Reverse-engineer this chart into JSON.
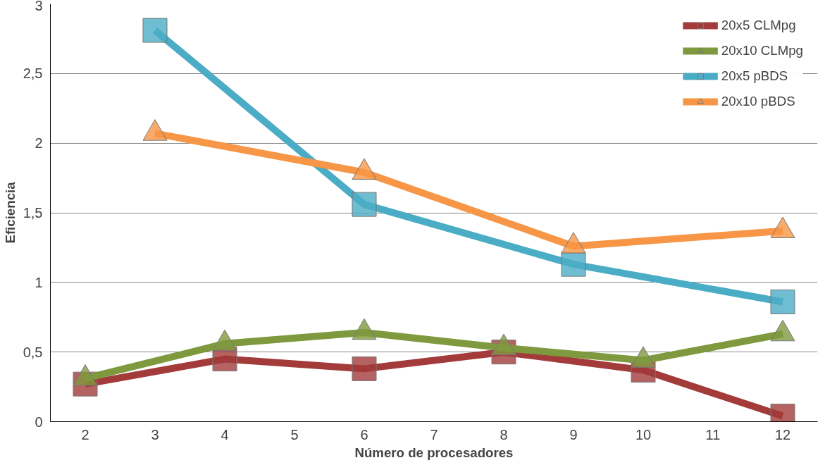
{
  "chart_data": {
    "type": "line",
    "xlabel": "Número de procesadores",
    "ylabel": "Eficiencia",
    "categories": [
      "2",
      "3",
      "4",
      "5",
      "6",
      "7",
      "8",
      "9",
      "10",
      "11",
      "12"
    ],
    "ylim": [
      0,
      3
    ],
    "yticks": [
      0,
      {
        "value": 0.5,
        "label": "0,5"
      },
      1,
      {
        "value": 1.5,
        "label": "1,5"
      },
      2,
      {
        "value": 2.5,
        "label": "2,5"
      },
      3
    ],
    "grid": "y",
    "legend": "top right",
    "series": [
      {
        "name": "20x5 CLMpg",
        "color": "#a33b3b",
        "marker": "square",
        "values": [
          0.27,
          null,
          0.45,
          null,
          0.38,
          null,
          0.5,
          null,
          0.37,
          null,
          0.04
        ]
      },
      {
        "name": "20x10 CLMpg",
        "color": "#7f9a3e",
        "marker": "triangle",
        "values": [
          0.31,
          null,
          0.56,
          null,
          0.64,
          null,
          0.53,
          null,
          0.44,
          null,
          0.63
        ]
      },
      {
        "name": "20x5 pBDS",
        "color": "#4bacc6",
        "marker": "square",
        "values": [
          null,
          2.81,
          null,
          null,
          1.56,
          null,
          null,
          1.13,
          null,
          null,
          0.86
        ]
      },
      {
        "name": "20x10 pBDS",
        "color": "#f79646",
        "marker": "triangle",
        "values": [
          null,
          2.07,
          null,
          null,
          1.79,
          null,
          null,
          1.26,
          null,
          null,
          1.37
        ]
      }
    ]
  }
}
